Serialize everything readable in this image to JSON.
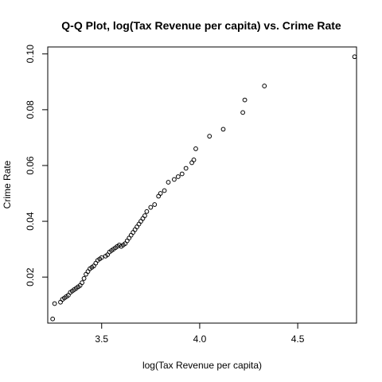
{
  "chart_data": {
    "type": "scatter",
    "title": "Q-Q Plot, log(Tax Revenue per capita) vs. Crime Rate",
    "xlabel": "log(Tax Revenue per capita)",
    "ylabel": "Crime Rate",
    "xlim": [
      3.225,
      4.8
    ],
    "ylim": [
      0.0035,
      0.1025
    ],
    "x_ticks": [
      3.5,
      4.0,
      4.5
    ],
    "x_tick_labels": [
      "3.5",
      "4.0",
      "4.5"
    ],
    "y_ticks": [
      0.02,
      0.04,
      0.06,
      0.08,
      0.1
    ],
    "y_tick_labels": [
      "0.02",
      "0.04",
      "0.06",
      "0.08",
      "0.10"
    ],
    "grid": false,
    "points": {
      "x": [
        3.25,
        3.26,
        3.29,
        3.3,
        3.31,
        3.32,
        3.33,
        3.34,
        3.35,
        3.36,
        3.37,
        3.38,
        3.39,
        3.4,
        3.41,
        3.42,
        3.43,
        3.44,
        3.45,
        3.46,
        3.47,
        3.48,
        3.49,
        3.5,
        3.52,
        3.53,
        3.54,
        3.55,
        3.56,
        3.57,
        3.58,
        3.59,
        3.6,
        3.61,
        3.62,
        3.63,
        3.64,
        3.65,
        3.66,
        3.67,
        3.68,
        3.69,
        3.7,
        3.71,
        3.72,
        3.73,
        3.75,
        3.77,
        3.79,
        3.8,
        3.82,
        3.84,
        3.87,
        3.89,
        3.91,
        3.93,
        3.96,
        3.97,
        3.98,
        4.05,
        4.12,
        4.22,
        4.23,
        4.33,
        4.79
      ],
      "y": [
        0.005,
        0.0105,
        0.011,
        0.012,
        0.0125,
        0.013,
        0.0135,
        0.0145,
        0.015,
        0.0155,
        0.016,
        0.0165,
        0.017,
        0.018,
        0.0195,
        0.021,
        0.022,
        0.023,
        0.0235,
        0.024,
        0.025,
        0.026,
        0.0265,
        0.027,
        0.0275,
        0.028,
        0.029,
        0.0295,
        0.03,
        0.0305,
        0.031,
        0.0315,
        0.031,
        0.0315,
        0.032,
        0.033,
        0.034,
        0.035,
        0.036,
        0.037,
        0.038,
        0.039,
        0.04,
        0.041,
        0.042,
        0.0435,
        0.045,
        0.046,
        0.049,
        0.05,
        0.051,
        0.054,
        0.055,
        0.056,
        0.057,
        0.059,
        0.061,
        0.062,
        0.066,
        0.0705,
        0.073,
        0.079,
        0.0835,
        0.0885,
        0.099
      ]
    }
  }
}
